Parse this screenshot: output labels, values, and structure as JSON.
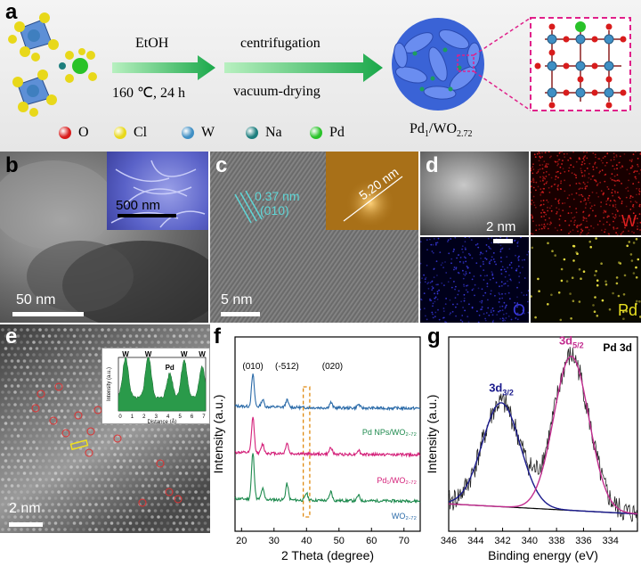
{
  "panel_a": {
    "label": "a",
    "step1_top": "EtOH",
    "step1_bottom": "160 ℃, 24 h",
    "step2_top": "centrifugation",
    "step2_bottom": "vacuum-drying",
    "product": "Pd₁/WO₂.₇₂",
    "legend": [
      {
        "label": "O",
        "color": "#d81c1c"
      },
      {
        "label": "Cl",
        "color": "#e8d81a"
      },
      {
        "label": "W",
        "color": "#3f8fc4"
      },
      {
        "label": "Na",
        "color": "#1d7e7e"
      },
      {
        "label": "Pd",
        "color": "#29c229"
      }
    ]
  },
  "panel_b": {
    "label": "b",
    "scale": "50 nm",
    "inset_scale": "500 nm"
  },
  "panel_c": {
    "label": "c",
    "scale": "5 nm",
    "spacing": "0.37 nm",
    "plane": "(010)",
    "inset_size": "5.20 nm"
  },
  "panel_d": {
    "label": "d",
    "scale": "2 nm",
    "maps": [
      "W",
      "O",
      "Pd"
    ]
  },
  "panel_e": {
    "label": "e",
    "scale": "2 nm",
    "inset_ylabel": "Intensity (a.u.)",
    "inset_xlabel": "Distance (Å)",
    "inset_peak_labels": [
      "W",
      "W",
      "Pd",
      "W",
      "W"
    ],
    "inset_xticks": [
      "0",
      "1",
      "2",
      "3",
      "4",
      "5",
      "6",
      "7"
    ]
  },
  "panel_f": {
    "label": "f"
  },
  "panel_g": {
    "label": "g"
  },
  "chart_data": [
    {
      "type": "line",
      "panel": "f",
      "xlabel": "2 Theta (degree)",
      "ylabel": "Intensity (a.u.)",
      "xlim": [
        18,
        75
      ],
      "xticks": [
        20,
        30,
        40,
        50,
        60,
        70
      ],
      "peak_labels": [
        {
          "text": "(010)",
          "x": 23.5
        },
        {
          "text": "(-512)",
          "x": 34
        },
        {
          "text": "(020)",
          "x": 48
        }
      ],
      "series": [
        {
          "name": "Pd NPs/WO₂.₇₂",
          "color": "#1e8a4e",
          "offset": 2.0,
          "peaks": [
            [
              23.5,
              1.3
            ],
            [
              26.5,
              0.3
            ],
            [
              34,
              0.45
            ],
            [
              40,
              0.2
            ],
            [
              47.5,
              0.25
            ],
            [
              56,
              0.15
            ]
          ]
        },
        {
          "name": "Pd₁/WO₂.₇₂",
          "color": "#d4217a",
          "offset": 1.0,
          "peaks": [
            [
              23.5,
              1.0
            ],
            [
              26.5,
              0.25
            ],
            [
              34,
              0.3
            ],
            [
              47.5,
              0.2
            ],
            [
              56,
              0.12
            ]
          ]
        },
        {
          "name": "WO₂.₇₂",
          "color": "#2a6aa8",
          "offset": 0.0,
          "peaks": [
            [
              23.5,
              0.9
            ],
            [
              26.5,
              0.2
            ],
            [
              34,
              0.2
            ],
            [
              47.5,
              0.15
            ],
            [
              56,
              0.1
            ]
          ]
        }
      ],
      "highlight_range": [
        39,
        41
      ]
    },
    {
      "type": "line",
      "panel": "g",
      "title": "Pd 3d",
      "xlabel": "Binding energy (eV)",
      "ylabel": "Intensity (a.u.)",
      "xlim": [
        346,
        332
      ],
      "xticks": [
        346,
        344,
        342,
        340,
        338,
        336,
        334
      ],
      "peaks": [
        {
          "label": "3d3/2",
          "center": 342.1,
          "height": 0.62,
          "width": 1.4,
          "color": "#1a1a8c"
        },
        {
          "label": "3d5/2",
          "center": 336.9,
          "height": 0.92,
          "width": 1.3,
          "color": "#c22c8f"
        }
      ],
      "peak_label_main": [
        "3d",
        "3d"
      ],
      "peak_label_sub": [
        "3/2",
        "5/2"
      ]
    }
  ]
}
